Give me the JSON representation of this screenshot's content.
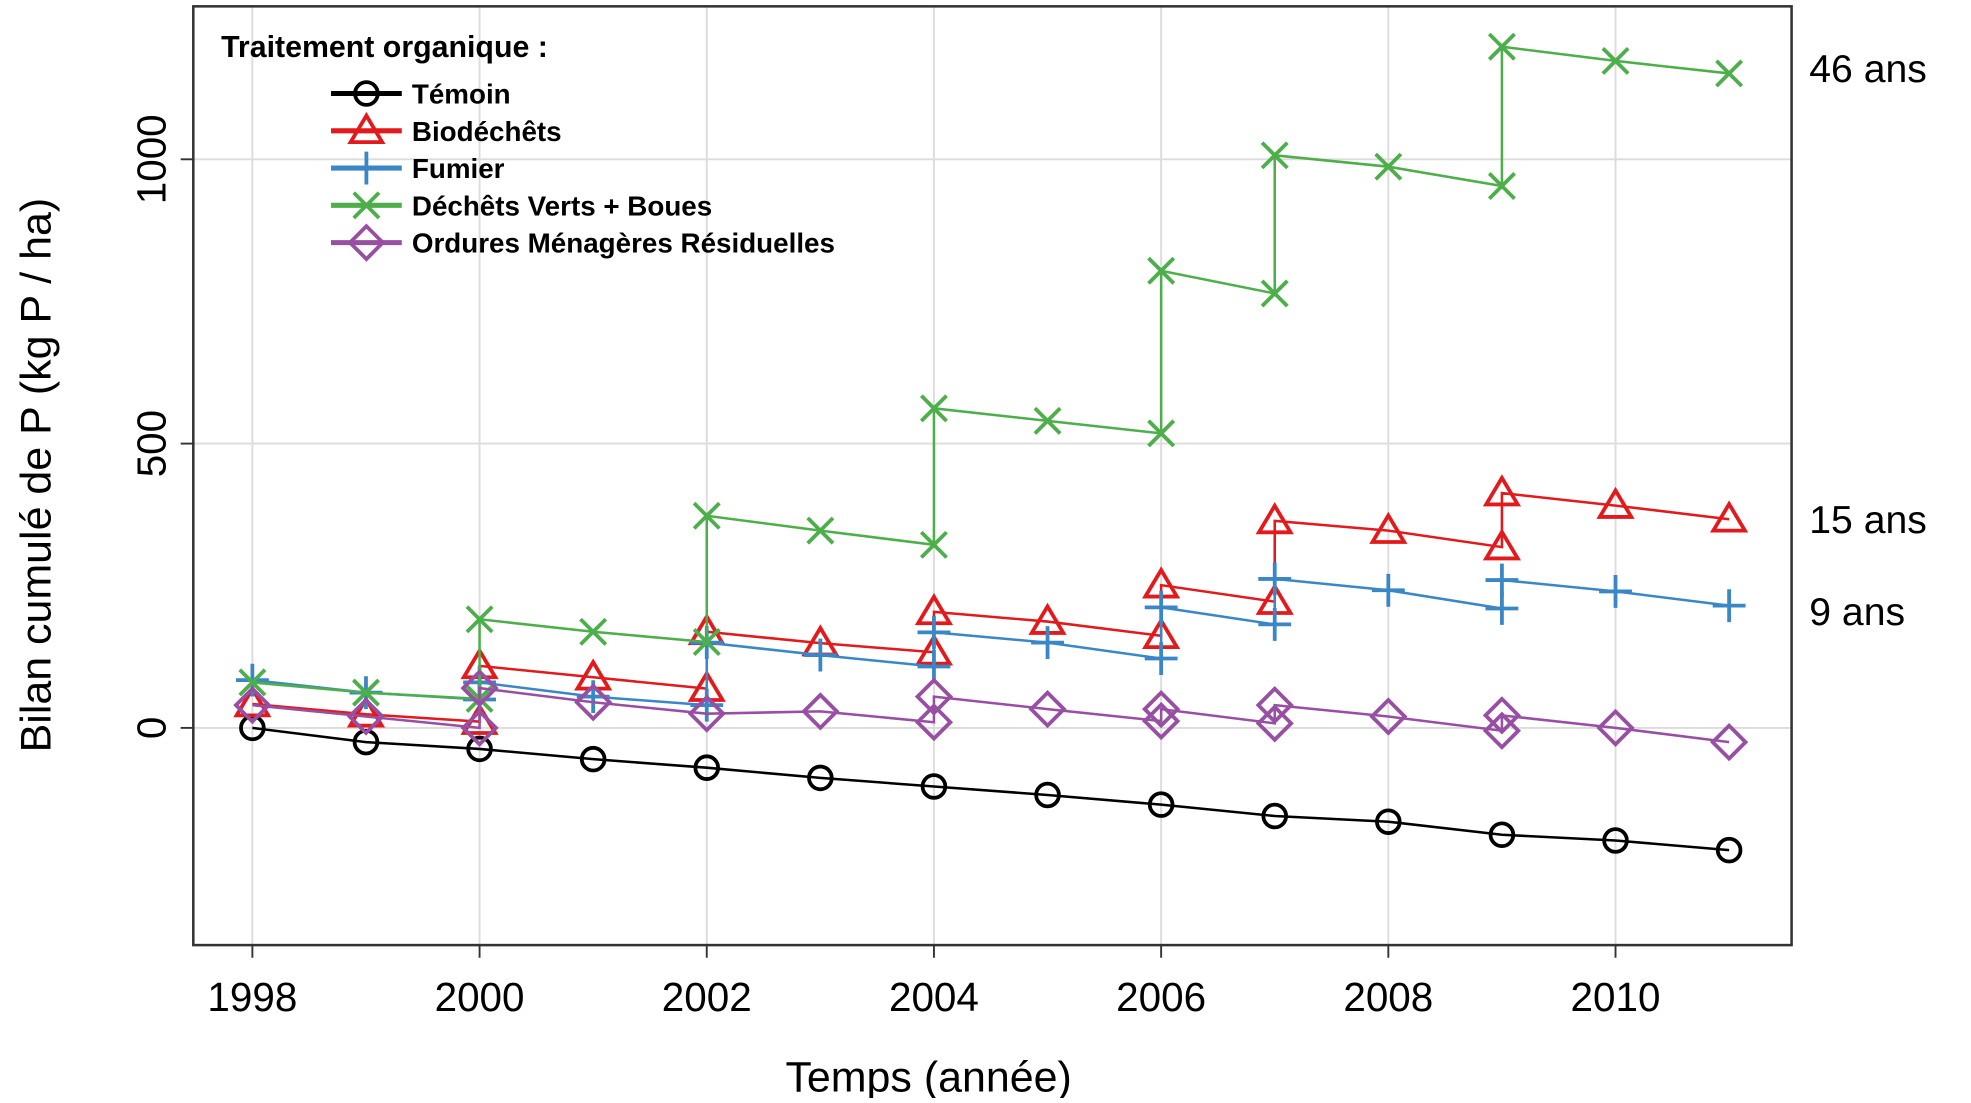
{
  "chart_data": {
    "type": "line",
    "x_label": "Temps (année)",
    "y_label": "Bilan cumulé de P (kg P / ha)",
    "legend_title": "Traitement organique :",
    "legend_position": "upper left",
    "grid": true,
    "xlim": [
      1997.48,
      2011.55
    ],
    "xticks": [
      1998,
      2000,
      2002,
      2004,
      2006,
      2008,
      2010
    ],
    "ylim": [
      -382,
      1269
    ],
    "yticks": [
      0,
      500,
      1000
    ],
    "annotations": [
      {
        "text": "46 ans",
        "y": 1160
      },
      {
        "text": "15 ans",
        "y": 367
      },
      {
        "text": "9 ans",
        "y": 205
      }
    ],
    "series": [
      {
        "name": "Témoin",
        "color": "#000000",
        "marker": "circle",
        "x": [
          1998,
          1999,
          2000,
          2001,
          2002,
          2003,
          2004,
          2005,
          2006,
          2007,
          2008,
          2009,
          2010,
          2011
        ],
        "values": [
          0,
          -25,
          -37,
          -55,
          -70,
          -88,
          -103,
          -118,
          -135,
          -155,
          -165,
          -188,
          -198,
          -215
        ]
      },
      {
        "name": "Biodéchêts",
        "color": "#e31a1c",
        "marker": "triangle",
        "x": [
          1998,
          1999,
          2000,
          2000,
          2001,
          2002,
          2002,
          2003,
          2004,
          2004,
          2005,
          2006,
          2006,
          2007,
          2007,
          2008,
          2009,
          2009,
          2010,
          2011
        ],
        "values": [
          42,
          24,
          11,
          109,
          89,
          69,
          169,
          149,
          133,
          204,
          187,
          162,
          251,
          222,
          364,
          347,
          318,
          413,
          391,
          367
        ]
      },
      {
        "name": "Fumier",
        "color": "#3a87c8",
        "marker": "plus",
        "x": [
          1998,
          1999,
          2000,
          2000,
          2001,
          2002,
          2002,
          2003,
          2004,
          2004,
          2005,
          2006,
          2006,
          2007,
          2007,
          2008,
          2009,
          2009,
          2010,
          2011
        ],
        "values": [
          84,
          62,
          50,
          80,
          55,
          40,
          150,
          128,
          108,
          168,
          150,
          122,
          212,
          182,
          262,
          242,
          210,
          260,
          240,
          215
        ]
      },
      {
        "name": "Déchêts Verts + Boues",
        "color": "#4daf4a",
        "marker": "x",
        "x": [
          1998,
          1999,
          2000,
          2000,
          2001,
          2002,
          2002,
          2003,
          2004,
          2004,
          2005,
          2006,
          2006,
          2007,
          2007,
          2008,
          2009,
          2009,
          2010,
          2011
        ],
        "values": [
          80,
          62,
          51,
          191,
          169,
          151,
          373,
          347,
          322,
          562,
          540,
          518,
          804,
          764,
          1007,
          987,
          953,
          1198,
          1173,
          1151
        ]
      },
      {
        "name": "Ordures Ménagères Résiduelles",
        "color": "#984ea3",
        "marker": "diamond",
        "x": [
          1998,
          1999,
          2000,
          2000,
          2001,
          2002,
          2003,
          2004,
          2004,
          2005,
          2006,
          2006,
          2007,
          2007,
          2008,
          2009,
          2009,
          2010,
          2011
        ],
        "values": [
          40,
          20,
          0,
          70,
          45,
          25,
          29,
          10,
          55,
          33,
          12,
          33,
          8,
          40,
          20,
          -5,
          22,
          0,
          -25
        ]
      }
    ]
  }
}
